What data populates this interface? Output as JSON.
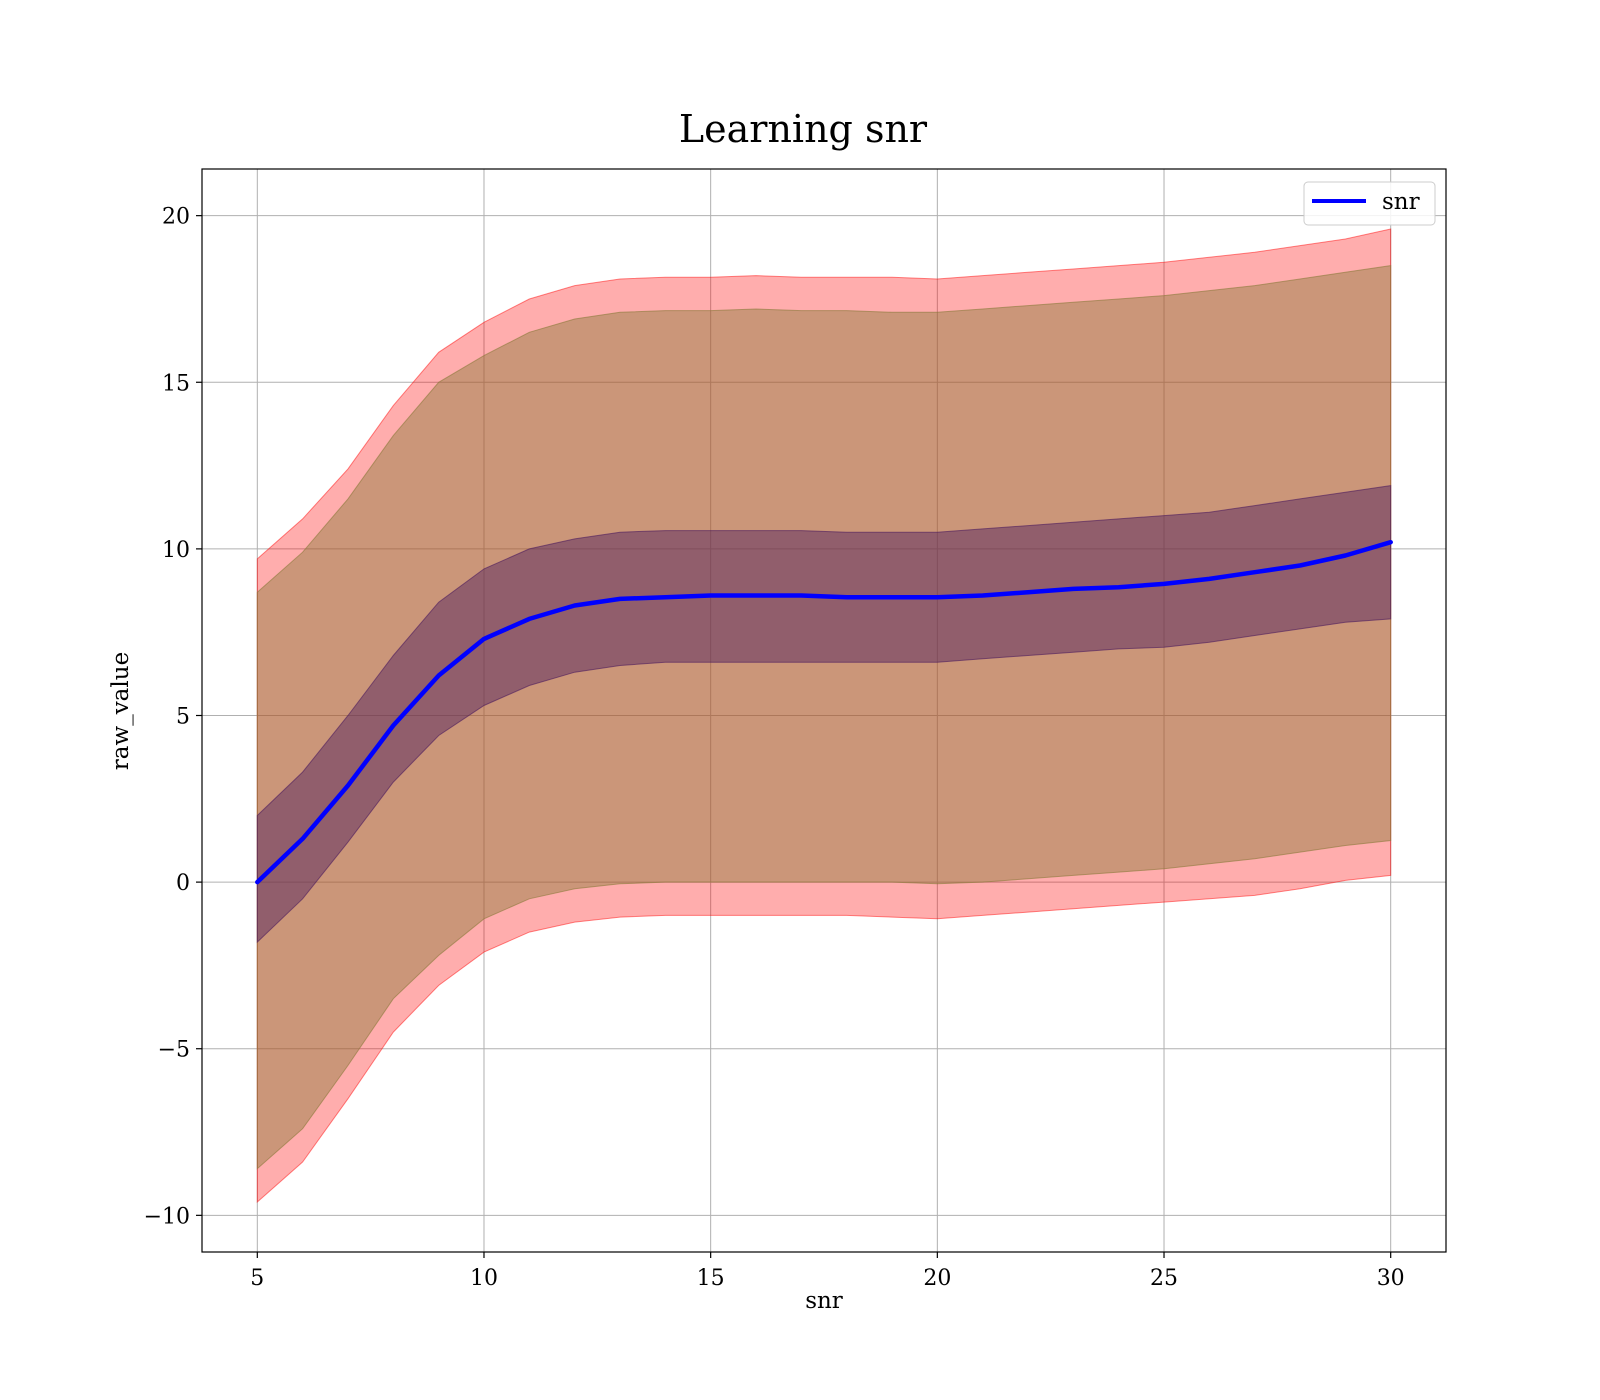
{
  "chart_data": {
    "type": "area",
    "title": "Learning snr",
    "xlabel": "snr",
    "ylabel": "raw_value",
    "xlim": [
      3.78,
      31.22
    ],
    "ylim": [
      -11.1,
      21.4
    ],
    "x_ticks": [
      5,
      10,
      15,
      20,
      25,
      30
    ],
    "y_ticks": [
      -10,
      -5,
      0,
      5,
      10,
      15,
      20
    ],
    "x_tick_labels": [
      "5",
      "10",
      "15",
      "20",
      "25",
      "30"
    ],
    "y_tick_labels": [
      "−10",
      "−5",
      "0",
      "5",
      "10",
      "15",
      "20"
    ],
    "grid": true,
    "legend": {
      "position": "top-right",
      "entries": [
        "snr"
      ]
    },
    "x": [
      5,
      6,
      7,
      8,
      9,
      10,
      11,
      12,
      13,
      14,
      15,
      16,
      17,
      18,
      19,
      20,
      21,
      22,
      23,
      24,
      25,
      26,
      27,
      28,
      29,
      30
    ],
    "series": [
      {
        "name": "snr",
        "color": "#0000ff",
        "values": [
          0.0,
          1.3,
          2.9,
          4.7,
          6.2,
          7.3,
          7.9,
          8.3,
          8.5,
          8.55,
          8.6,
          8.6,
          8.6,
          8.55,
          8.55,
          8.55,
          8.6,
          8.7,
          8.8,
          8.85,
          8.95,
          9.1,
          9.3,
          9.5,
          9.8,
          10.2
        ]
      }
    ],
    "bands": [
      {
        "color": "#ff0000",
        "opacity": 0.32,
        "lower": [
          -9.6,
          -8.4,
          -6.5,
          -4.5,
          -3.1,
          -2.1,
          -1.5,
          -1.2,
          -1.05,
          -1.0,
          -1.0,
          -1.0,
          -1.0,
          -1.0,
          -1.05,
          -1.1,
          -1.0,
          -0.9,
          -0.8,
          -0.7,
          -0.6,
          -0.5,
          -0.4,
          -0.2,
          0.05,
          0.2
        ],
        "upper": [
          9.7,
          10.9,
          12.4,
          14.3,
          15.9,
          16.8,
          17.5,
          17.9,
          18.1,
          18.15,
          18.15,
          18.2,
          18.15,
          18.15,
          18.15,
          18.1,
          18.2,
          18.3,
          18.4,
          18.5,
          18.6,
          18.75,
          18.9,
          19.1,
          19.3,
          19.6
        ]
      },
      {
        "color": "#8b7a3a",
        "opacity": 0.45,
        "lower": [
          -8.6,
          -7.4,
          -5.5,
          -3.5,
          -2.2,
          -1.1,
          -0.5,
          -0.2,
          -0.05,
          0.0,
          0.0,
          0.0,
          0.0,
          0.0,
          0.0,
          -0.05,
          0.0,
          0.1,
          0.2,
          0.3,
          0.4,
          0.55,
          0.7,
          0.9,
          1.1,
          1.25
        ],
        "upper": [
          8.7,
          9.9,
          11.5,
          13.4,
          15.0,
          15.8,
          16.5,
          16.9,
          17.1,
          17.15,
          17.15,
          17.2,
          17.15,
          17.15,
          17.1,
          17.1,
          17.2,
          17.3,
          17.4,
          17.5,
          17.6,
          17.75,
          17.9,
          18.1,
          18.3,
          18.5
        ]
      },
      {
        "color": "#4b1a5e",
        "opacity": 0.45,
        "lower": [
          -1.8,
          -0.5,
          1.2,
          3.0,
          4.4,
          5.3,
          5.9,
          6.3,
          6.5,
          6.6,
          6.6,
          6.6,
          6.6,
          6.6,
          6.6,
          6.6,
          6.7,
          6.8,
          6.9,
          7.0,
          7.05,
          7.2,
          7.4,
          7.6,
          7.8,
          7.9
        ],
        "upper": [
          2.0,
          3.3,
          5.0,
          6.8,
          8.4,
          9.4,
          10.0,
          10.3,
          10.5,
          10.55,
          10.55,
          10.55,
          10.55,
          10.5,
          10.5,
          10.5,
          10.6,
          10.7,
          10.8,
          10.9,
          11.0,
          11.1,
          11.3,
          11.5,
          11.7,
          11.9
        ]
      }
    ]
  }
}
